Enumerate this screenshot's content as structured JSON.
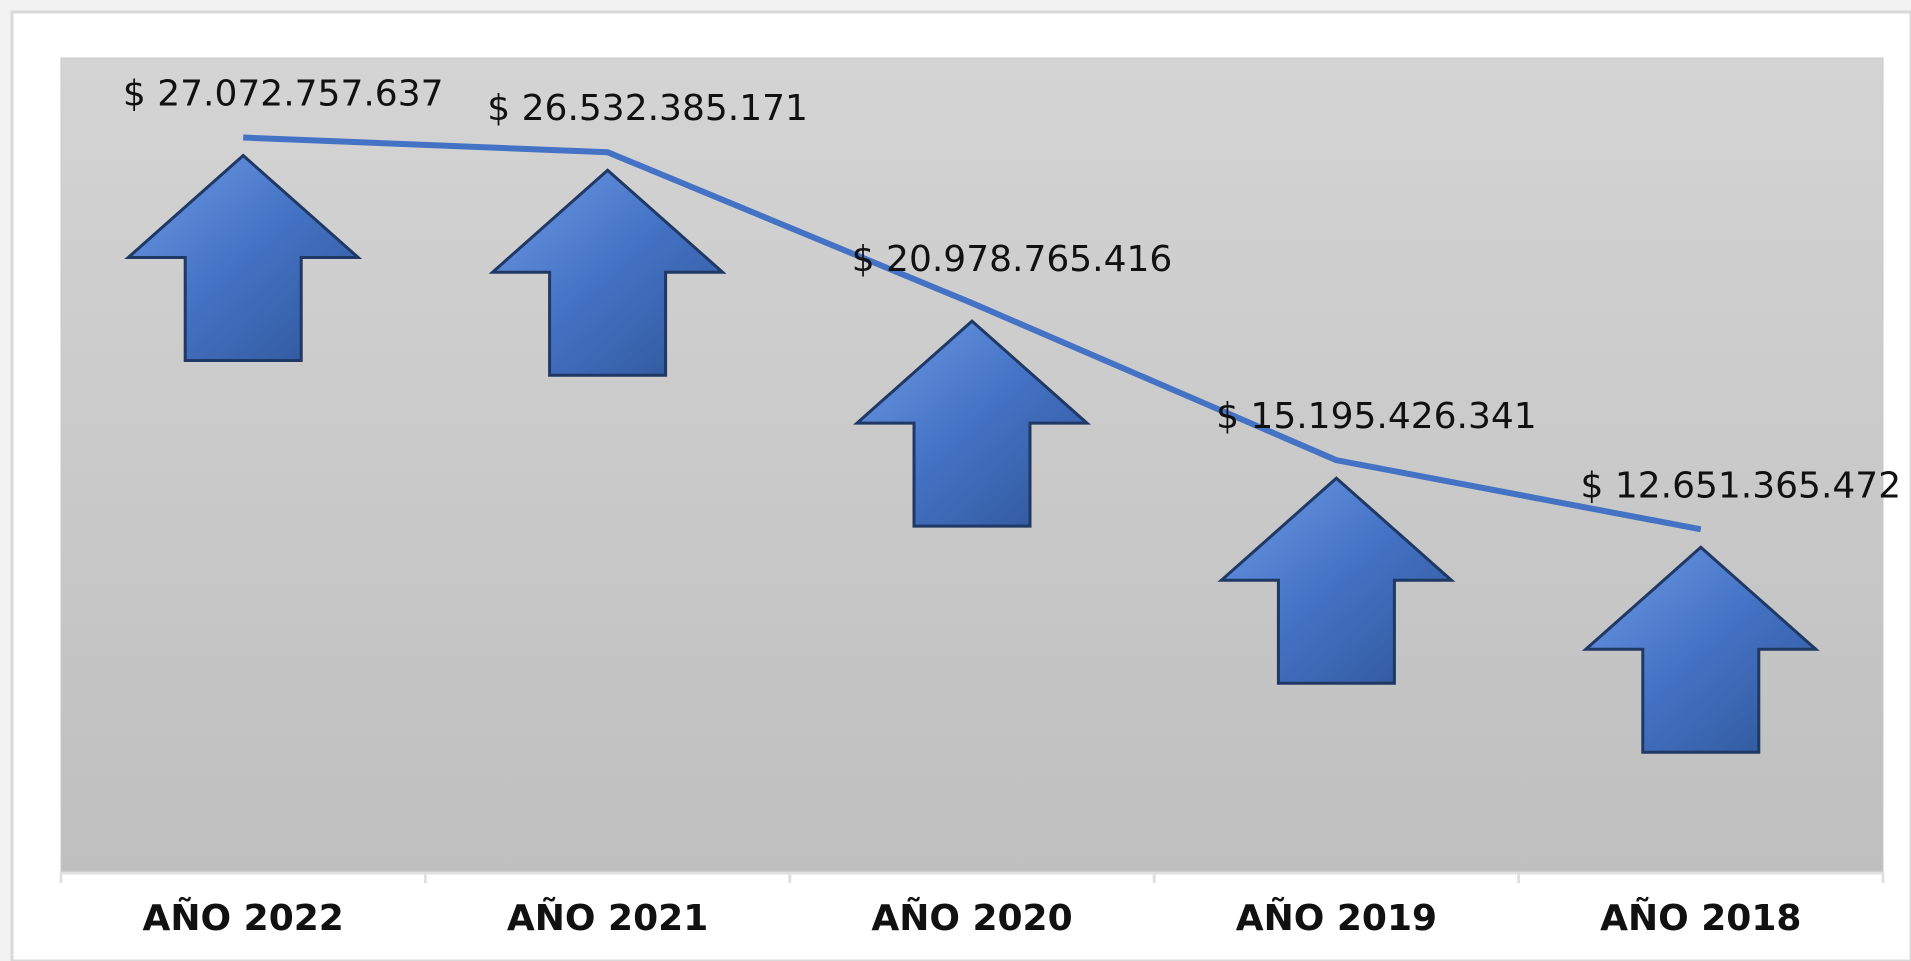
{
  "chart_data": {
    "type": "line",
    "categories": [
      "AÑO 2022",
      "AÑO 2021",
      "AÑO 2020",
      "AÑO 2019",
      "AÑO 2018"
    ],
    "values": [
      27072757637,
      26532385171,
      20978765416,
      15195426341,
      12651365472
    ],
    "value_labels": [
      "$ 27.072.757.637",
      "$ 26.532.385.171",
      "$ 20.978.765.416",
      "$ 15.195.426.341",
      "$ 12.651.365.472"
    ],
    "color": "#4472c4",
    "ylim": [
      0,
      30000000000
    ]
  }
}
